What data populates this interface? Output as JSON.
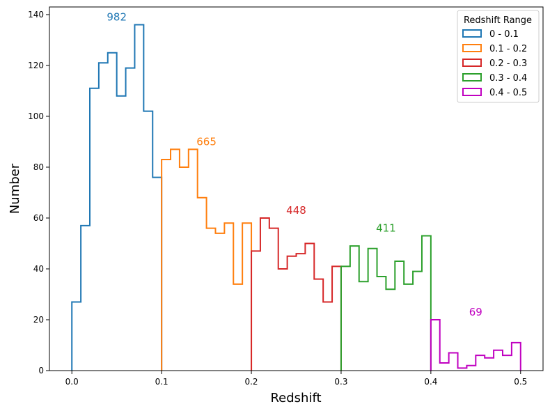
{
  "chart_data": {
    "type": "histogram-step",
    "xlabel": "Redshift",
    "ylabel": "Number",
    "xlim": [
      -0.025,
      0.525
    ],
    "ylim": [
      0,
      143
    ],
    "xticks": [
      "0.0",
      "0.1",
      "0.2",
      "0.3",
      "0.4",
      "0.5"
    ],
    "xtick_values": [
      0.0,
      0.1,
      0.2,
      0.3,
      0.4,
      0.5
    ],
    "yticks": [
      "0",
      "20",
      "40",
      "60",
      "80",
      "100",
      "120",
      "140"
    ],
    "ytick_values": [
      0,
      20,
      40,
      60,
      80,
      100,
      120,
      140
    ],
    "bin_width": 0.01,
    "legend": {
      "title": "Redshift Range",
      "placement": "top-right"
    },
    "series": [
      {
        "name": "0 - 0.1",
        "color": "#1f77b4",
        "start": 0.0,
        "counts": [
          27,
          57,
          111,
          121,
          125,
          108,
          119,
          136,
          102,
          76
        ],
        "total_label": "982",
        "label_at": [
          0.05,
          136
        ]
      },
      {
        "name": "0.1 - 0.2",
        "color": "#ff7f0e",
        "start": 0.1,
        "counts": [
          83,
          87,
          80,
          87,
          68,
          56,
          54,
          58,
          34,
          58
        ],
        "total_label": "665",
        "label_at": [
          0.15,
          87
        ]
      },
      {
        "name": "0.2 - 0.3",
        "color": "#d62728",
        "start": 0.2,
        "counts": [
          47,
          60,
          56,
          40,
          45,
          46,
          50,
          36,
          27,
          41
        ],
        "total_label": "448",
        "label_at": [
          0.25,
          60
        ]
      },
      {
        "name": "0.3 - 0.4",
        "color": "#2ca02c",
        "start": 0.3,
        "counts": [
          41,
          49,
          35,
          48,
          37,
          32,
          43,
          34,
          39,
          53
        ],
        "total_label": "411",
        "label_at": [
          0.35,
          53
        ]
      },
      {
        "name": "0.4 - 0.5",
        "color": "#c000c0",
        "start": 0.4,
        "counts": [
          20,
          3,
          7,
          1,
          2,
          6,
          5,
          8,
          6,
          11
        ],
        "total_label": "69",
        "label_at": [
          0.45,
          20
        ]
      }
    ]
  }
}
